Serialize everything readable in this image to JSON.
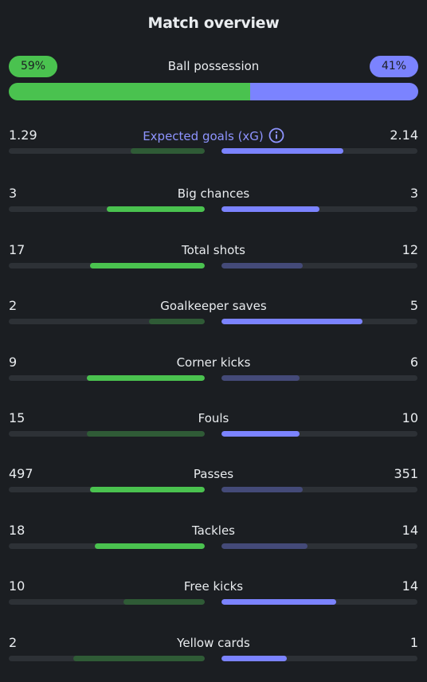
{
  "header": {
    "title": "Match overview"
  },
  "possession": {
    "label": "Ball possession",
    "home_label": "59%",
    "away_label": "41%",
    "home_fraction": 0.59
  },
  "stats": [
    {
      "label": "Expected goals (xG)",
      "home": "1.29",
      "away": "2.14",
      "home_fill": 0.38,
      "away_fill": 0.62,
      "home_wins": false,
      "away_wins": true,
      "info": true,
      "accent": true
    },
    {
      "label": "Big chances",
      "home": "3",
      "away": "3",
      "home_fill": 0.5,
      "away_fill": 0.5,
      "home_wins": true,
      "away_wins": true
    },
    {
      "label": "Total shots",
      "home": "17",
      "away": "12",
      "home_fill": 0.585,
      "away_fill": 0.415,
      "home_wins": true,
      "away_wins": false
    },
    {
      "label": "Goalkeeper saves",
      "home": "2",
      "away": "5",
      "home_fill": 0.285,
      "away_fill": 0.72,
      "home_wins": false,
      "away_wins": true
    },
    {
      "label": "Corner kicks",
      "home": "9",
      "away": "6",
      "home_fill": 0.6,
      "away_fill": 0.4,
      "home_wins": true,
      "away_wins": false
    },
    {
      "label": "Fouls",
      "home": "15",
      "away": "10",
      "home_fill": 0.6,
      "away_fill": 0.4,
      "home_wins": false,
      "away_wins": true
    },
    {
      "label": "Passes",
      "home": "497",
      "away": "351",
      "home_fill": 0.585,
      "away_fill": 0.415,
      "home_wins": true,
      "away_wins": false
    },
    {
      "label": "Tackles",
      "home": "18",
      "away": "14",
      "home_fill": 0.56,
      "away_fill": 0.44,
      "home_wins": true,
      "away_wins": false
    },
    {
      "label": "Free kicks",
      "home": "10",
      "away": "14",
      "home_fill": 0.415,
      "away_fill": 0.585,
      "home_wins": false,
      "away_wins": true
    },
    {
      "label": "Yellow cards",
      "home": "2",
      "away": "1",
      "home_fill": 0.67,
      "away_fill": 0.335,
      "home_wins": false,
      "away_wins": true
    }
  ],
  "colors": {
    "home": "#4ac24f",
    "away": "#7b83ff",
    "background": "#1b1e22"
  }
}
